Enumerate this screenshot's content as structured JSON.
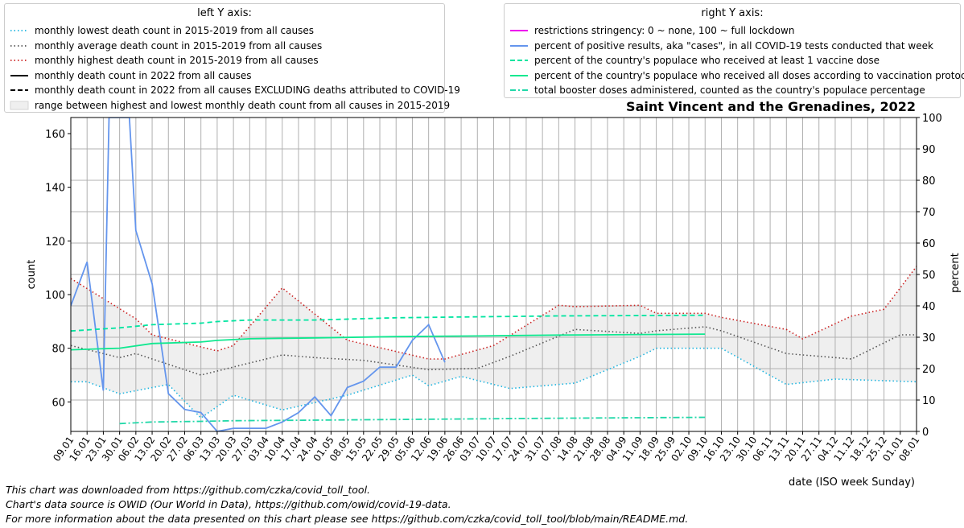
{
  "chart_data": {
    "type": "line",
    "title": "Saint Vincent and the Grenadines, 2022",
    "xlabel": "date (ISO week Sunday)",
    "ylabel_left": "count",
    "ylabel_right": "percent",
    "ylim_left": [
      49,
      166
    ],
    "ylim_right": [
      0,
      100
    ],
    "yticks_left": [
      "60",
      "80",
      "100",
      "120",
      "140",
      "160"
    ],
    "yticks_right": [
      "0",
      "10",
      "20",
      "30",
      "40",
      "50",
      "60",
      "70",
      "80",
      "90",
      "100"
    ],
    "grid": true,
    "categories": [
      "09.01",
      "16.01",
      "23.01",
      "30.01",
      "06.02",
      "13.02",
      "20.02",
      "27.02",
      "06.03",
      "13.03",
      "20.03",
      "27.03",
      "03.04",
      "10.04",
      "17.04",
      "24.04",
      "01.05",
      "08.05",
      "15.05",
      "22.05",
      "29.05",
      "05.06",
      "12.06",
      "19.06",
      "26.06",
      "03.07",
      "10.07",
      "17.07",
      "24.07",
      "31.07",
      "07.08",
      "14.08",
      "21.08",
      "28.08",
      "04.09",
      "11.09",
      "18.09",
      "25.09",
      "02.10",
      "09.10",
      "16.10",
      "23.10",
      "30.10",
      "06.11",
      "13.11",
      "20.11",
      "27.11",
      "04.12",
      "11.12",
      "18.12",
      "25.12",
      "01.01",
      "08.01"
    ],
    "series": [
      {
        "name": "monthly lowest death count in 2015-2019 from all causes",
        "axis": "left",
        "color": "#1fb5e0",
        "dash": "dotted",
        "points": [
          [
            0,
            67.5
          ],
          [
            1,
            67.5
          ],
          [
            3,
            63
          ],
          [
            6,
            66.5
          ],
          [
            8,
            54
          ],
          [
            10,
            62.5
          ],
          [
            13,
            57
          ],
          [
            17,
            62.5
          ],
          [
            21,
            70
          ],
          [
            22,
            66
          ],
          [
            24,
            69.5
          ],
          [
            27,
            65
          ],
          [
            31,
            67
          ],
          [
            35,
            77
          ],
          [
            36,
            80
          ],
          [
            40,
            80
          ],
          [
            44,
            66.5
          ],
          [
            47,
            68.5
          ],
          [
            52,
            67.5
          ]
        ]
      },
      {
        "name": "monthly average death count in 2015-2019 from all causes",
        "axis": "left",
        "color": "#555555",
        "dash": "dotted",
        "points": [
          [
            0,
            81
          ],
          [
            3,
            76.5
          ],
          [
            4,
            78
          ],
          [
            8,
            70
          ],
          [
            10,
            73
          ],
          [
            13,
            77.5
          ],
          [
            15,
            76.5
          ],
          [
            18,
            75.5
          ],
          [
            22,
            72
          ],
          [
            25,
            72.5
          ],
          [
            27,
            77
          ],
          [
            31,
            87
          ],
          [
            35,
            85.5
          ],
          [
            36,
            86.5
          ],
          [
            39,
            88
          ],
          [
            40,
            86.5
          ],
          [
            44,
            78
          ],
          [
            48,
            76
          ],
          [
            51,
            85
          ],
          [
            52,
            85
          ]
        ]
      },
      {
        "name": "monthly highest death count in 2015-2019 from all causes",
        "axis": "left",
        "color": "#cc2222",
        "dash": "dotted",
        "points": [
          [
            0,
            106
          ],
          [
            4,
            91
          ],
          [
            5,
            85
          ],
          [
            9,
            79
          ],
          [
            10,
            81
          ],
          [
            13,
            102.5
          ],
          [
            17,
            83
          ],
          [
            22,
            76
          ],
          [
            23,
            76
          ],
          [
            26,
            81
          ],
          [
            30,
            96
          ],
          [
            31,
            95.5
          ],
          [
            35,
            96
          ],
          [
            36,
            93
          ],
          [
            38,
            93
          ],
          [
            39,
            93
          ],
          [
            40,
            91.5
          ],
          [
            44,
            87
          ],
          [
            45,
            83.5
          ],
          [
            48,
            92
          ],
          [
            50,
            94.5
          ],
          [
            52,
            110.5
          ],
          [
            52.5,
            106
          ]
        ]
      },
      {
        "name": "percent of positive results, aka \"cases\", in all COVID-19 tests conducted that week",
        "axis": "right",
        "color": "#6495ed",
        "dash": "solid",
        "points": [
          [
            0,
            40
          ],
          [
            1,
            54
          ],
          [
            2,
            13
          ],
          [
            2.35,
            100
          ],
          [
            3,
            100
          ],
          [
            3.6,
            100
          ],
          [
            4,
            64
          ],
          [
            5,
            47
          ],
          [
            6,
            12
          ],
          [
            7,
            7
          ],
          [
            8,
            6
          ],
          [
            9,
            0
          ],
          [
            10,
            1
          ],
          [
            11,
            1
          ],
          [
            12,
            1
          ],
          [
            13,
            3
          ],
          [
            14,
            6
          ],
          [
            15,
            11
          ],
          [
            16,
            5
          ],
          [
            17,
            14
          ],
          [
            18,
            16
          ],
          [
            19,
            20.5
          ],
          [
            20,
            20.5
          ],
          [
            21,
            29
          ],
          [
            22,
            34
          ],
          [
            23,
            22
          ]
        ]
      },
      {
        "name": "percent of the country's populace who received at least 1 vaccine dose",
        "axis": "right",
        "color": "#00e5a0",
        "dash": "dashed",
        "points": [
          [
            0,
            32
          ],
          [
            3,
            33
          ],
          [
            5,
            34
          ],
          [
            8,
            34.5
          ],
          [
            9,
            35
          ],
          [
            11,
            35.5
          ],
          [
            15,
            35.5
          ],
          [
            20,
            36.2
          ],
          [
            25,
            36.5
          ],
          [
            30,
            36.8
          ],
          [
            39,
            37
          ]
        ]
      },
      {
        "name": "percent of the country's populace who received all doses according to vaccination protocol",
        "axis": "right",
        "color": "#10e890",
        "dash": "solid",
        "points": [
          [
            0,
            26
          ],
          [
            3,
            26.5
          ],
          [
            5,
            28
          ],
          [
            8,
            28.5
          ],
          [
            9,
            29
          ],
          [
            11,
            29.5
          ],
          [
            15,
            29.8
          ],
          [
            20,
            30.2
          ],
          [
            25,
            30.4
          ],
          [
            30,
            30.7
          ],
          [
            39,
            31
          ]
        ]
      },
      {
        "name": "total booster doses administered, counted as the country's populace percentage",
        "axis": "right",
        "color": "#20d8a8",
        "dash": "dashdot",
        "points": [
          [
            3,
            2.5
          ],
          [
            5,
            3
          ],
          [
            8,
            3.2
          ],
          [
            10,
            3.4
          ],
          [
            15,
            3.6
          ],
          [
            20,
            3.8
          ],
          [
            25,
            4.0
          ],
          [
            30,
            4.2
          ],
          [
            39,
            4.5
          ]
        ]
      }
    ],
    "band": {
      "name": "range between highest and lowest monthly death count from all causes in 2015-2019",
      "color": "#efefef"
    }
  },
  "legend_left": {
    "title": "left Y axis:",
    "items": [
      {
        "label": "monthly lowest death count in 2015-2019 from all causes",
        "color": "#1fb5e0",
        "style": "dotted"
      },
      {
        "label": "monthly average death count in 2015-2019 from all causes",
        "color": "#555555",
        "style": "dotted"
      },
      {
        "label": "monthly highest death count in 2015-2019 from all causes",
        "color": "#cc2222",
        "style": "dotted"
      },
      {
        "label": "monthly death count in 2022 from all causes",
        "color": "#000000",
        "style": "solid"
      },
      {
        "label": "monthly death count in 2022 from all causes EXCLUDING deaths attributed to COVID-19",
        "color": "#000000",
        "style": "dashed"
      },
      {
        "label": "range between highest and lowest monthly death count from all causes in 2015-2019",
        "color": "#efefef",
        "style": "patch"
      }
    ]
  },
  "legend_right": {
    "title": "right Y axis:",
    "items": [
      {
        "label": "restrictions stringency: 0 ~ none, 100 ~ full lockdown",
        "color": "#ee00ee",
        "style": "solid"
      },
      {
        "label": "percent of positive results, aka \"cases\", in all COVID-19 tests conducted that week",
        "color": "#6495ed",
        "style": "solid"
      },
      {
        "label": "percent of the country's populace who received at least 1 vaccine dose",
        "color": "#00e5a0",
        "style": "dashed"
      },
      {
        "label": "percent of the country's populace who received all doses according to vaccination protocol",
        "color": "#10e890",
        "style": "solid"
      },
      {
        "label": "total booster doses administered, counted as the country's populace percentage",
        "color": "#20d8a8",
        "style": "dashdot"
      }
    ]
  },
  "footnotes": [
    "This chart was downloaded from https://github.com/czka/covid_toll_tool.",
    "Chart's data source is OWID (Our World in Data), https://github.com/owid/covid-19-data.",
    "For more information about the data presented on this chart please see https://github.com/czka/covid_toll_tool/blob/main/README.md."
  ]
}
